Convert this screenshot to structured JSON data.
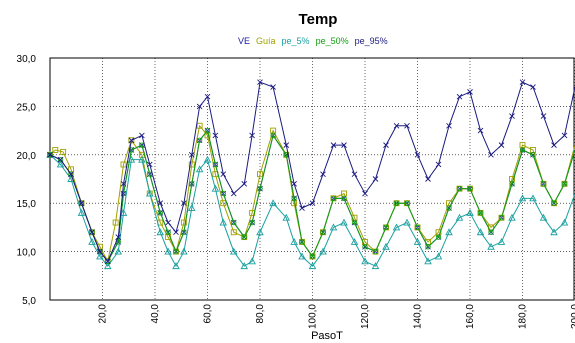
{
  "chart_data": {
    "type": "line",
    "title": "Temp",
    "xlabel": "PasoT",
    "ylabel": "",
    "xlim": [
      0,
      200
    ],
    "ylim": [
      5,
      30
    ],
    "x_ticks": [
      20,
      40,
      60,
      80,
      100,
      120,
      140,
      160,
      180,
      200
    ],
    "x_tick_labels": [
      "20,0",
      "40,0",
      "60,0",
      "80,0",
      "100,0",
      "120,0",
      "140,0",
      "160,0",
      "180,0",
      "200,0"
    ],
    "y_ticks": [
      5,
      10,
      15,
      20,
      25,
      30
    ],
    "y_tick_labels": [
      "5,0",
      "10,0",
      "15,0",
      "20,0",
      "25,0",
      "30,0"
    ],
    "grid": true,
    "legend_position": "top-center",
    "colors": {
      "VE": "#1a1aa0",
      "Guía": "#a0a000",
      "pe_5%": "#1aa0a0",
      "pe_50%": "#10a010",
      "pe_95%": "#1a1a80"
    },
    "series": [
      {
        "name": "VE",
        "x": [
          0,
          4,
          8,
          12,
          16,
          19,
          22,
          26,
          28,
          31,
          35,
          38,
          42,
          45,
          48,
          51,
          54,
          57,
          60,
          63,
          66,
          70,
          74,
          77,
          80,
          85,
          90,
          93,
          96,
          100,
          104,
          108,
          112,
          116,
          120,
          124,
          128,
          132,
          136,
          140,
          144,
          148,
          152,
          156,
          160,
          164,
          168,
          172,
          176,
          180,
          184,
          188,
          192,
          196,
          200
        ],
        "y": [
          20,
          19.5,
          18,
          15,
          12,
          10,
          9,
          11,
          16,
          20.5,
          21,
          18,
          14,
          12,
          10,
          12,
          17,
          21.5,
          22.5,
          19,
          16,
          13,
          11.5,
          13,
          16.5,
          22,
          20,
          15.5,
          11,
          9.5,
          12,
          15.5,
          15.5,
          13,
          10.5,
          10,
          12.5,
          15,
          15,
          12.5,
          10.5,
          11.5,
          14.5,
          16.5,
          16.5,
          14,
          12,
          13.5,
          17,
          20.5,
          20,
          17,
          15,
          17,
          20.5
        ]
      },
      {
        "name": "Guía",
        "x": [
          0,
          2,
          5,
          8,
          12,
          16,
          19,
          22,
          25,
          28,
          31,
          35,
          38,
          42,
          45,
          48,
          51,
          54,
          57,
          60,
          63,
          66,
          70,
          74,
          77,
          80,
          85,
          90,
          93,
          96,
          100,
          104,
          108,
          112,
          116,
          120,
          124,
          128,
          132,
          136,
          140,
          144,
          148,
          152,
          156,
          160,
          164,
          168,
          172,
          176,
          180,
          184,
          188,
          192,
          196,
          200
        ],
        "y": [
          20,
          20.5,
          20.3,
          18.5,
          15,
          12,
          10.5,
          9,
          13,
          19,
          21.5,
          20,
          16,
          13,
          11.5,
          10,
          13,
          19,
          23,
          22,
          18,
          15,
          12,
          11.5,
          14,
          18,
          22.5,
          20,
          15,
          11,
          9.5,
          12,
          15.5,
          16,
          13.5,
          11,
          10,
          12.5,
          15,
          15,
          12.5,
          11,
          12,
          15,
          16.5,
          16.5,
          14,
          12.5,
          13.5,
          17.5,
          21,
          20.5,
          17,
          15,
          17,
          21
        ]
      },
      {
        "name": "pe_5%",
        "x": [
          0,
          4,
          8,
          12,
          16,
          19,
          22,
          26,
          28,
          31,
          35,
          38,
          42,
          45,
          48,
          51,
          54,
          57,
          60,
          63,
          66,
          70,
          74,
          77,
          80,
          85,
          90,
          93,
          96,
          100,
          104,
          108,
          112,
          116,
          120,
          124,
          128,
          132,
          136,
          140,
          144,
          148,
          152,
          156,
          160,
          164,
          168,
          172,
          176,
          180,
          184,
          188,
          192,
          196,
          200
        ],
        "y": [
          20,
          19,
          17.5,
          14,
          11,
          9.5,
          8.5,
          10,
          14,
          19.5,
          19.5,
          16,
          12,
          10,
          8.5,
          10,
          14.5,
          18.5,
          19.5,
          16.5,
          13,
          10,
          8.5,
          9,
          12,
          15,
          13.5,
          11,
          9.5,
          8.5,
          10,
          12.5,
          13,
          11,
          9,
          8.5,
          10.5,
          12.5,
          13,
          11,
          9,
          9.5,
          12,
          13.5,
          14,
          12,
          10.5,
          11,
          13.5,
          15.5,
          15.5,
          13.5,
          12,
          13,
          16
        ]
      },
      {
        "name": "pe_50%",
        "x": [
          0,
          4,
          8,
          12,
          16,
          19,
          22,
          26,
          28,
          31,
          35,
          38,
          42,
          45,
          48,
          51,
          54,
          57,
          60,
          63,
          66,
          70,
          74,
          77,
          80,
          85,
          90,
          93,
          96,
          100,
          104,
          108,
          112,
          116,
          120,
          124,
          128,
          132,
          136,
          140,
          144,
          148,
          152,
          156,
          160,
          164,
          168,
          172,
          176,
          180,
          184,
          188,
          192,
          196,
          200
        ],
        "y": [
          20,
          19.5,
          18,
          15,
          12,
          10,
          9,
          11,
          16,
          20.5,
          21,
          18,
          14,
          12,
          10,
          12,
          17,
          21.5,
          22.5,
          19,
          16,
          13,
          11.5,
          13,
          16.5,
          22,
          20,
          15.5,
          11,
          9.5,
          12,
          15.5,
          15.5,
          13,
          10.5,
          10,
          12.5,
          15,
          15,
          12.5,
          10.5,
          11.5,
          14.5,
          16.5,
          16.5,
          14,
          12,
          13.5,
          17,
          20.5,
          20,
          17,
          15,
          17,
          20.5
        ]
      },
      {
        "name": "pe_95%",
        "x": [
          0,
          4,
          8,
          12,
          16,
          19,
          22,
          26,
          28,
          31,
          35,
          38,
          42,
          45,
          48,
          51,
          54,
          57,
          60,
          63,
          66,
          70,
          74,
          77,
          80,
          85,
          90,
          93,
          96,
          100,
          104,
          108,
          112,
          116,
          120,
          124,
          128,
          132,
          136,
          140,
          144,
          148,
          152,
          156,
          160,
          164,
          168,
          172,
          176,
          180,
          184,
          188,
          192,
          196,
          200
        ],
        "y": [
          20,
          19.5,
          18,
          15,
          12,
          10,
          9,
          11.5,
          17,
          21.5,
          22,
          19,
          15,
          13,
          12,
          15,
          20,
          25,
          26,
          22,
          18,
          16,
          17,
          22,
          27.5,
          27,
          21,
          17,
          14.5,
          15,
          18,
          21,
          21,
          18,
          16,
          17.5,
          21,
          23,
          23,
          20,
          17.5,
          19,
          23,
          26,
          26.5,
          22.5,
          20,
          21,
          24,
          27.5,
          27,
          24,
          21,
          22,
          27
        ]
      }
    ]
  }
}
